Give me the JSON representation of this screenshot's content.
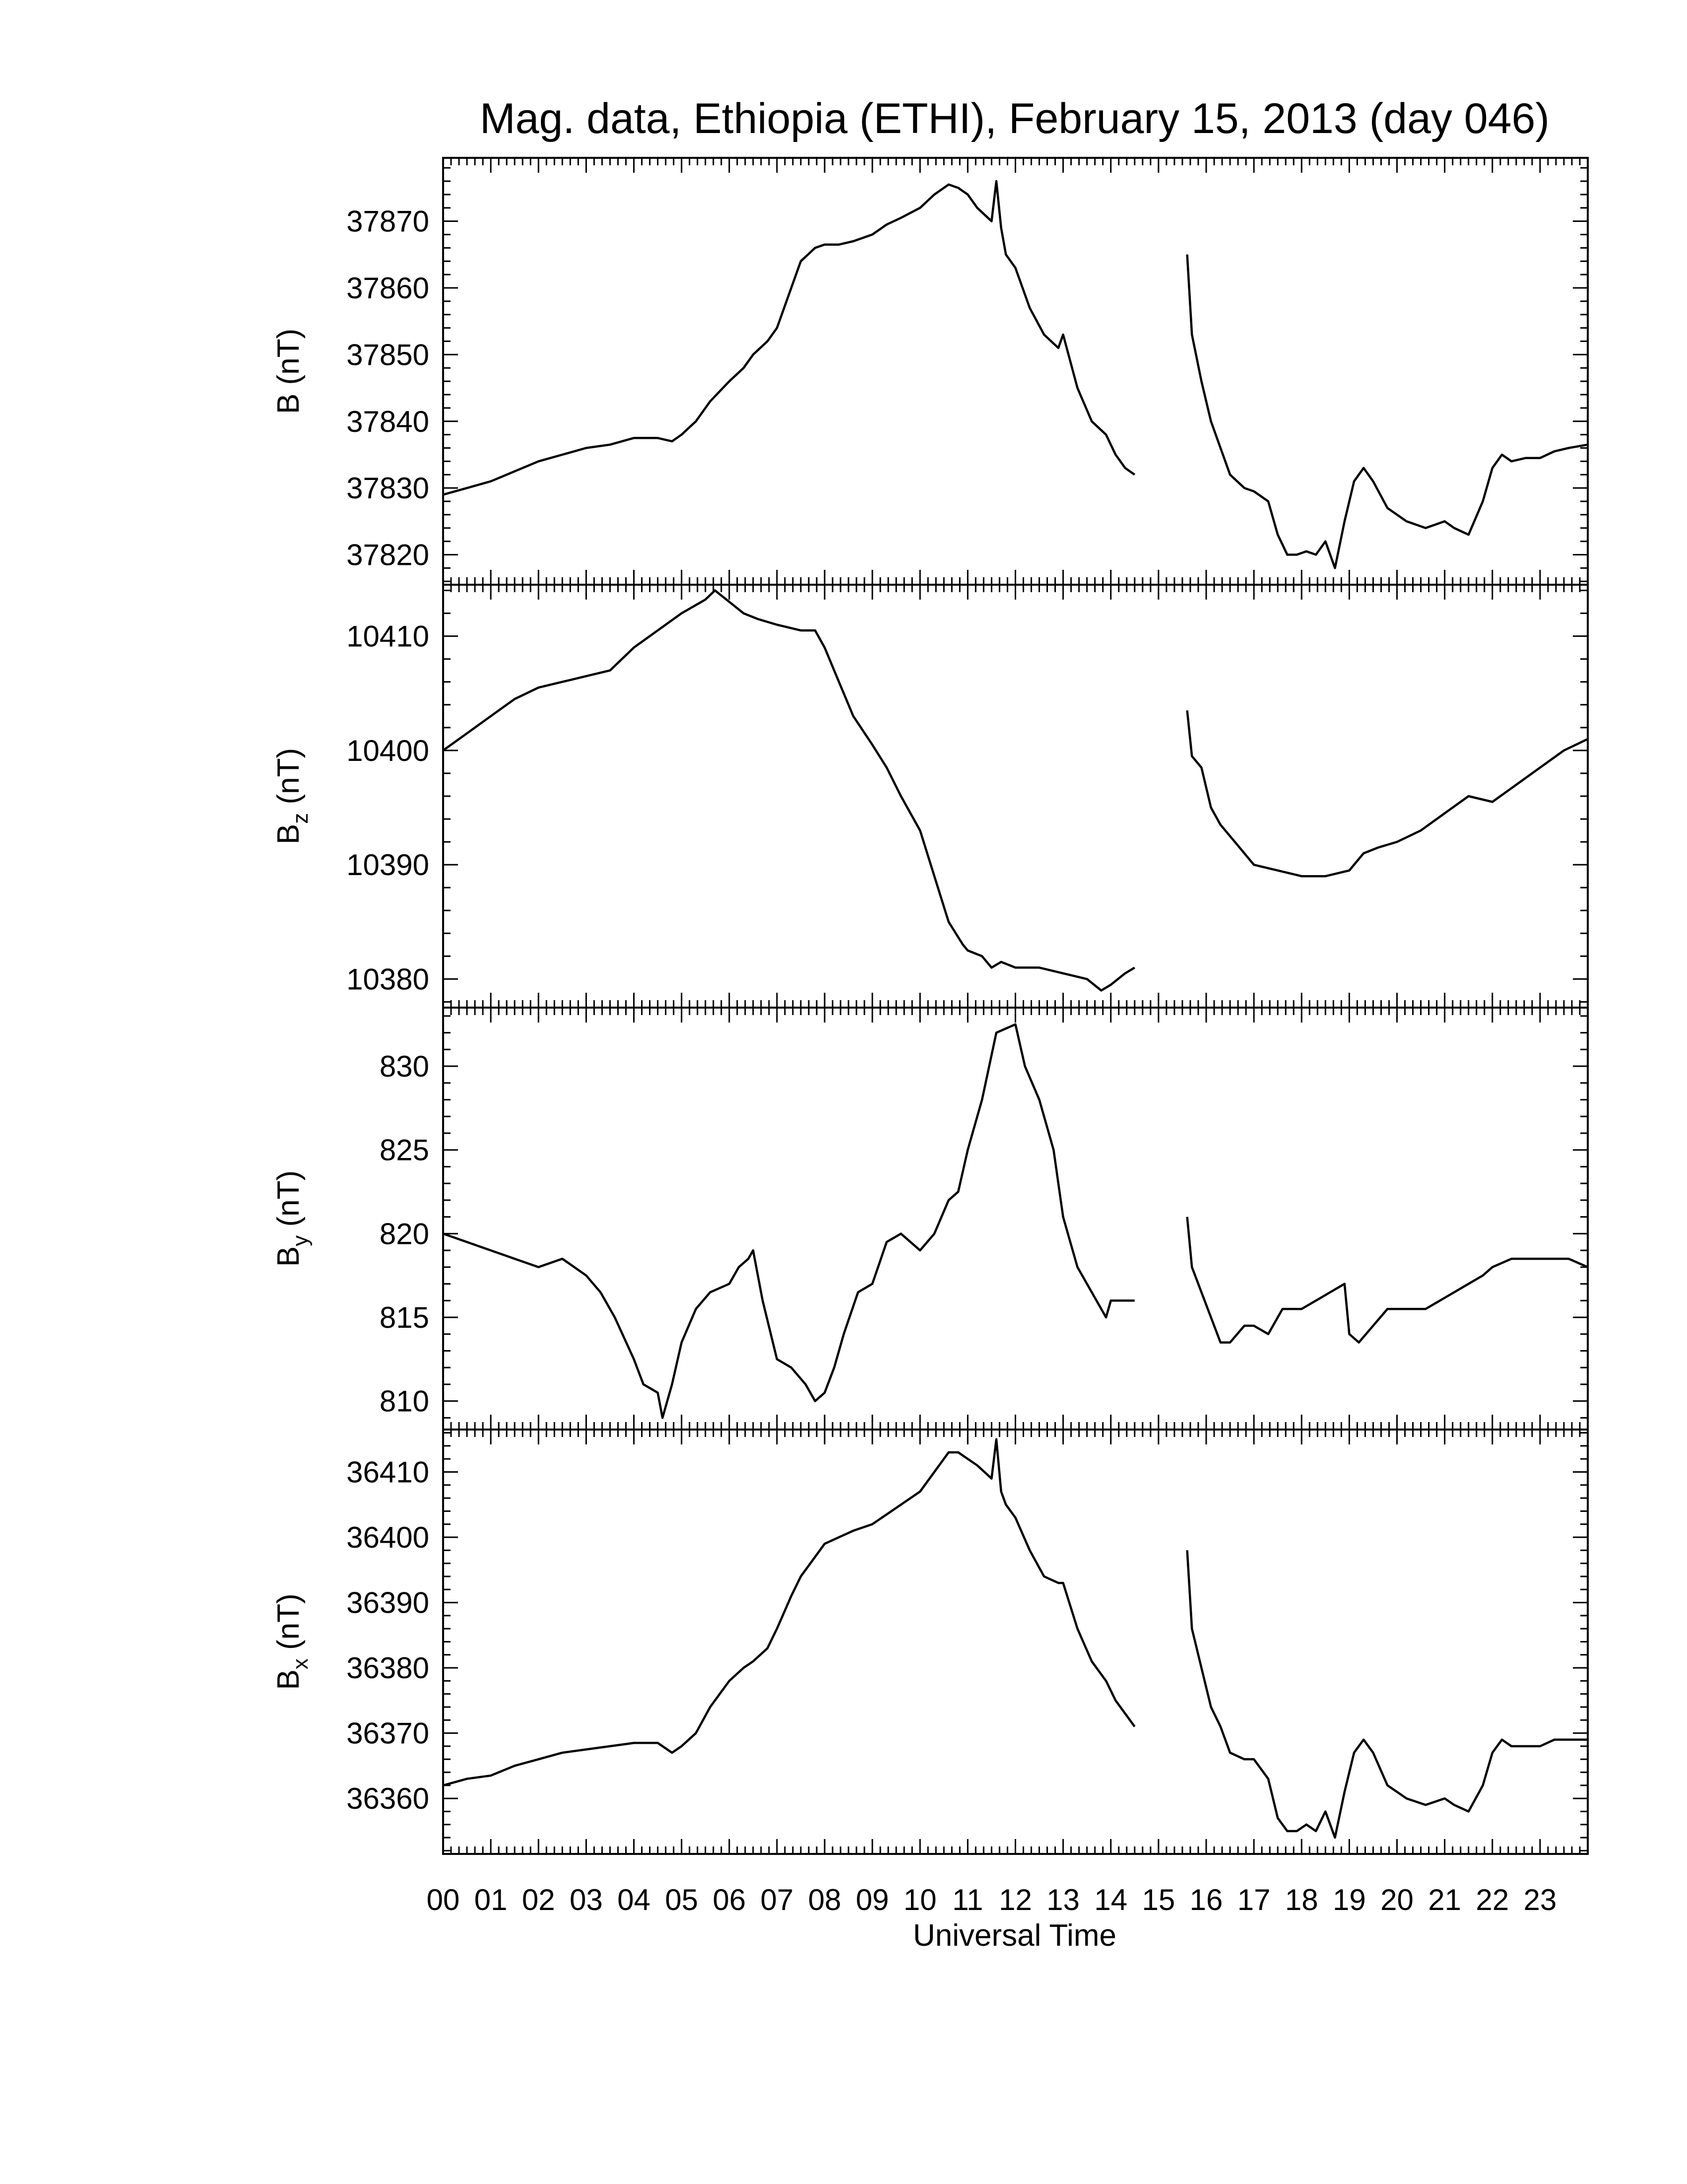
{
  "chart_data": {
    "type": "line",
    "title": "Mag. data, Ethiopia (ETHI), February 15, 2013 (day 046)",
    "xlabel": "Universal Time",
    "x_ticks": [
      "00",
      "01",
      "02",
      "03",
      "04",
      "05",
      "06",
      "07",
      "08",
      "09",
      "10",
      "11",
      "12",
      "13",
      "14",
      "15",
      "16",
      "17",
      "18",
      "19",
      "20",
      "21",
      "22",
      "23"
    ],
    "xlim": [
      0,
      24
    ],
    "data_gap_hours": [
      14.5,
      15.6
    ],
    "panels": [
      {
        "label_main": "B",
        "label_sub": "",
        "label_unit": " (nT)",
        "ylim": [
          37815.5,
          37879.5
        ],
        "yticks": [
          "37820",
          "37830",
          "37840",
          "37850",
          "37860",
          "37870"
        ],
        "series": [
          {
            "x": [
              0,
              0.5,
              1,
              1.5,
              2,
              2.5,
              3,
              3.5,
              4,
              4.5,
              4.8,
              5,
              5.3,
              5.6,
              6,
              6.3,
              6.5,
              6.8,
              7,
              7.3,
              7.5,
              7.8,
              8,
              8.3,
              8.6,
              9,
              9.3,
              9.6,
              10,
              10.3,
              10.6,
              10.8,
              11,
              11.2,
              11.5,
              11.6,
              11.7,
              11.8,
              12,
              12.3,
              12.6,
              12.9,
              13,
              13.3,
              13.6,
              13.9,
              14.1,
              14.3,
              14.5
            ],
            "y": [
              37829,
              37830,
              37831,
              37832.5,
              37834,
              37835,
              37836,
              37836.5,
              37837.5,
              37837.5,
              37837,
              37838,
              37840,
              37843,
              37846,
              37848,
              37850,
              37852,
              37854,
              37860,
              37864,
              37866,
              37866.5,
              37866.5,
              37867,
              37868,
              37869.5,
              37870.5,
              37872,
              37874,
              37875.5,
              37875,
              37874,
              37872,
              37870,
              37876,
              37869,
              37865,
              37863,
              37857,
              37853,
              37851,
              37853,
              37845,
              37840,
              37838,
              37835,
              37833,
              37832
            ]
          },
          {
            "x": [
              15.6,
              15.7,
              15.9,
              16.1,
              16.3,
              16.5,
              16.8,
              17,
              17.3,
              17.5,
              17.7,
              17.9,
              18.1,
              18.3,
              18.5,
              18.7,
              18.9,
              19.1,
              19.3,
              19.5,
              19.8,
              20.2,
              20.6,
              21,
              21.2,
              21.5,
              21.8,
              22,
              22.2,
              22.4,
              22.7,
              23,
              23.3,
              23.6,
              24
            ],
            "y": [
              37865,
              37853,
              37846,
              37840,
              37836,
              37832,
              37830,
              37829.5,
              37828,
              37823,
              37820,
              37820,
              37820.5,
              37820,
              37822,
              37818,
              37825,
              37831,
              37833,
              37831,
              37827,
              37825,
              37824,
              37825,
              37824,
              37823,
              37828,
              37833,
              37835,
              37834,
              37834.5,
              37834.5,
              37835.5,
              37836,
              37836.5
            ]
          }
        ]
      },
      {
        "label_main": "B",
        "label_sub": "z",
        "label_unit": " (nT)",
        "ylim": [
          10377.5,
          10414.5
        ],
        "yticks": [
          "10380",
          "10390",
          "10400",
          "10410"
        ],
        "series": [
          {
            "x": [
              0,
              0.5,
              1,
              1.5,
              2,
              2.5,
              3,
              3.5,
              4,
              4.5,
              5,
              5.5,
              5.7,
              6,
              6.3,
              6.6,
              7,
              7.5,
              7.8,
              8,
              8.3,
              8.6,
              9,
              9.3,
              9.6,
              10,
              10.3,
              10.6,
              10.9,
              11,
              11.3,
              11.5,
              11.7,
              12,
              12.5,
              13,
              13.5,
              13.8,
              14,
              14.3,
              14.5
            ],
            "y": [
              10400,
              10401.5,
              10403,
              10404.5,
              10405.5,
              10406,
              10406.5,
              10407,
              10409,
              10410.5,
              10412,
              10413.2,
              10414,
              10413,
              10412,
              10411.5,
              10411,
              10410.5,
              10410.5,
              10409,
              10406,
              10403,
              10400.5,
              10398.5,
              10396,
              10393,
              10389,
              10385,
              10383,
              10382.5,
              10382,
              10381,
              10381.5,
              10381,
              10381,
              10380.5,
              10380,
              10379,
              10379.5,
              10380.5,
              10381
            ]
          },
          {
            "x": [
              15.6,
              15.7,
              15.9,
              16.1,
              16.3,
              16.6,
              17,
              17.5,
              18,
              18.5,
              19,
              19.3,
              19.6,
              20,
              20.5,
              21,
              21.5,
              22,
              22.5,
              23,
              23.5,
              24
            ],
            "y": [
              10403.5,
              10399.5,
              10398.5,
              10395,
              10393.5,
              10392,
              10390,
              10389.5,
              10389,
              10389,
              10389.5,
              10391,
              10391.5,
              10392,
              10393,
              10394.5,
              10396,
              10395.5,
              10397,
              10398.5,
              10400,
              10401
            ]
          }
        ]
      },
      {
        "label_main": "B",
        "label_sub": "y",
        "label_unit": " (nT)",
        "ylim": [
          808.3,
          833.5
        ],
        "yticks": [
          "810",
          "815",
          "820",
          "825",
          "830"
        ],
        "series": [
          {
            "x": [
              0,
              0.5,
              1,
              1.5,
              2,
              2.5,
              3,
              3.3,
              3.6,
              4,
              4.2,
              4.5,
              4.6,
              4.8,
              5,
              5.3,
              5.6,
              6,
              6.2,
              6.4,
              6.5,
              6.7,
              7,
              7.3,
              7.6,
              7.8,
              8,
              8.2,
              8.4,
              8.7,
              9,
              9.3,
              9.6,
              10,
              10.3,
              10.6,
              10.8,
              11,
              11.3,
              11.6,
              12,
              12.2,
              12.5,
              12.8,
              13,
              13.3,
              13.6,
              13.9,
              14,
              14.2,
              14.5
            ],
            "y": [
              820,
              819.5,
              819,
              818.5,
              818,
              818.5,
              817.5,
              816.5,
              815,
              812.5,
              811,
              810.5,
              809,
              811,
              813.5,
              815.5,
              816.5,
              817,
              818,
              818.5,
              819,
              816,
              812.5,
              812,
              811,
              810,
              810.5,
              812,
              814,
              816.5,
              817,
              819.5,
              820,
              819,
              820,
              822,
              822.5,
              825,
              828,
              832,
              832.5,
              830,
              828,
              825,
              821,
              818,
              816.5,
              815,
              816,
              816,
              816
            ]
          },
          {
            "x": [
              15.6,
              15.7,
              15.9,
              16.1,
              16.3,
              16.5,
              16.8,
              17,
              17.3,
              17.6,
              18,
              18.3,
              18.6,
              18.9,
              19,
              19.2,
              19.5,
              19.8,
              20,
              20.3,
              20.6,
              20.9,
              21.2,
              21.5,
              21.8,
              22,
              22.4,
              22.8,
              23.2,
              23.6,
              24
            ],
            "y": [
              821,
              818,
              816.5,
              815,
              813.5,
              813.5,
              814.5,
              814.5,
              814,
              815.5,
              815.5,
              816,
              816.5,
              817,
              814,
              813.5,
              814.5,
              815.5,
              815.5,
              815.5,
              815.5,
              816,
              816.5,
              817,
              817.5,
              818,
              818.5,
              818.5,
              818.5,
              818.5,
              818
            ]
          }
        ]
      },
      {
        "label_main": "B",
        "label_sub": "x",
        "label_unit": " (nT)",
        "ylim": [
          36351.5,
          36416.5
        ],
        "yticks": [
          "36360",
          "36370",
          "36380",
          "36390",
          "36400",
          "36410"
        ],
        "series": [
          {
            "x": [
              0,
              0.5,
              1,
              1.5,
              2,
              2.5,
              3,
              3.5,
              4,
              4.5,
              4.8,
              5,
              5.3,
              5.6,
              6,
              6.3,
              6.5,
              6.8,
              7,
              7.3,
              7.5,
              7.8,
              8,
              8.3,
              8.6,
              9,
              9.3,
              9.6,
              10,
              10.3,
              10.6,
              10.8,
              11,
              11.2,
              11.5,
              11.6,
              11.7,
              11.8,
              12,
              12.3,
              12.6,
              12.9,
              13,
              13.3,
              13.6,
              13.9,
              14.1,
              14.3,
              14.5
            ],
            "y": [
              36362,
              36363,
              36363.5,
              36365,
              36366,
              36367,
              36367.5,
              36368,
              36368.5,
              36368.5,
              36367,
              36368,
              36370,
              36374,
              36378,
              36380,
              36381,
              36383,
              36386,
              36391,
              36394,
              36397,
              36399,
              36400,
              36401,
              36402,
              36403.5,
              36405,
              36407,
              36410,
              36413,
              36413,
              36412,
              36411,
              36409,
              36415,
              36407,
              36405,
              36403,
              36398,
              36394,
              36393,
              36393,
              36386,
              36381,
              36378,
              36375,
              36373,
              36371
            ]
          },
          {
            "x": [
              15.6,
              15.7,
              15.9,
              16.1,
              16.3,
              16.5,
              16.8,
              17,
              17.3,
              17.5,
              17.7,
              17.9,
              18.1,
              18.3,
              18.5,
              18.7,
              18.9,
              19.1,
              19.3,
              19.5,
              19.8,
              20.2,
              20.6,
              21,
              21.2,
              21.5,
              21.8,
              22,
              22.2,
              22.4,
              22.7,
              23,
              23.3,
              23.6,
              24
            ],
            "y": [
              36398,
              36386,
              36380,
              36374,
              36371,
              36367,
              36366,
              36366,
              36363,
              36357,
              36355,
              36355,
              36356,
              36355,
              36358,
              36354,
              36361,
              36367,
              36369,
              36367,
              36362,
              36360,
              36359,
              36360,
              36359,
              36358,
              36362,
              36367,
              36369,
              36368,
              36368,
              36368,
              36369,
              36369,
              36369
            ]
          }
        ]
      }
    ]
  }
}
